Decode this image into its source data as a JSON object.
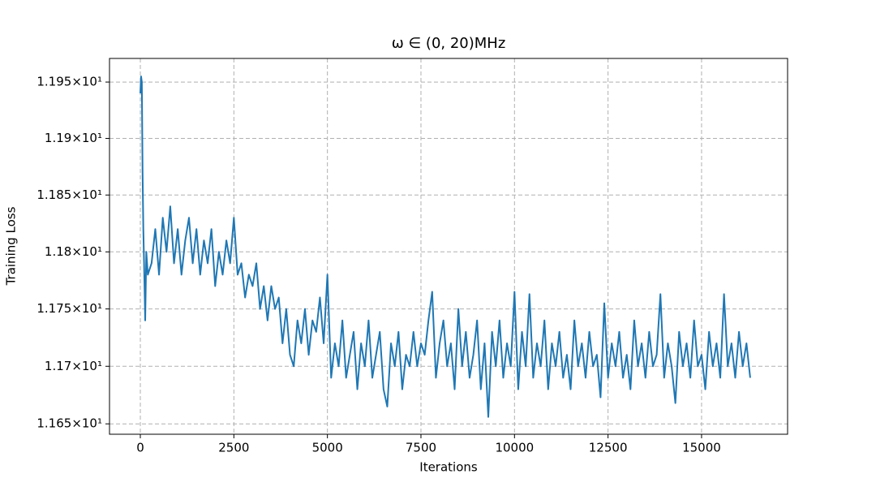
{
  "chart_data": {
    "type": "line",
    "title": "ω ∈ (0, 20)MHz",
    "x_label": "Iterations",
    "y_label": "Training Loss",
    "yscale": "log",
    "grid": true,
    "xlim": [
      -824,
      17299
    ],
    "xticks": [
      0,
      2500,
      5000,
      7500,
      10000,
      12500,
      15000
    ],
    "ylim": [
      11.641,
      11.971
    ],
    "yticks": [
      {
        "value": 11.65,
        "label": "1.165×10¹"
      },
      {
        "value": 11.7,
        "label": "1.17×10¹"
      },
      {
        "value": 11.75,
        "label": "1.175×10¹"
      },
      {
        "value": 11.8,
        "label": "1.18×10¹"
      },
      {
        "value": 11.85,
        "label": "1.185×10¹"
      },
      {
        "value": 11.9,
        "label": "1.19×10¹"
      },
      {
        "value": 11.95,
        "label": "1.195×10¹"
      }
    ],
    "x": [
      0,
      20,
      40,
      60,
      80,
      100,
      130,
      160,
      200,
      300,
      400,
      500,
      600,
      700,
      800,
      900,
      1000,
      1100,
      1200,
      1300,
      1400,
      1500,
      1600,
      1700,
      1800,
      1900,
      2000,
      2100,
      2200,
      2300,
      2400,
      2500,
      2600,
      2700,
      2800,
      2900,
      3000,
      3100,
      3200,
      3300,
      3400,
      3500,
      3600,
      3700,
      3800,
      3900,
      4000,
      4100,
      4200,
      4300,
      4400,
      4500,
      4600,
      4700,
      4800,
      4900,
      5000,
      5100,
      5200,
      5300,
      5400,
      5500,
      5600,
      5700,
      5800,
      5900,
      6000,
      6100,
      6200,
      6300,
      6400,
      6500,
      6600,
      6700,
      6800,
      6900,
      7000,
      7100,
      7200,
      7300,
      7400,
      7500,
      7600,
      7700,
      7800,
      7900,
      8000,
      8100,
      8200,
      8300,
      8400,
      8500,
      8600,
      8700,
      8800,
      8900,
      9000,
      9100,
      9200,
      9300,
      9400,
      9500,
      9600,
      9700,
      9800,
      9900,
      10000,
      10100,
      10200,
      10300,
      10400,
      10500,
      10600,
      10700,
      10800,
      10900,
      11000,
      11100,
      11200,
      11300,
      11400,
      11500,
      11600,
      11700,
      11800,
      11900,
      12000,
      12100,
      12200,
      12300,
      12400,
      12500,
      12600,
      12700,
      12800,
      12900,
      13000,
      13100,
      13200,
      13300,
      13400,
      13500,
      13600,
      13700,
      13800,
      13900,
      14000,
      14100,
      14200,
      14300,
      14400,
      14500,
      14600,
      14700,
      14800,
      14900,
      15000,
      15100,
      15200,
      15300,
      15400,
      15500,
      15600,
      15700,
      15800,
      15900,
      16000,
      16100,
      16200,
      16300
    ],
    "series": [
      {
        "name": "Training Loss",
        "color": "#1f77b4",
        "values": [
          11.94,
          11.955,
          11.95,
          11.87,
          11.82,
          11.79,
          11.74,
          11.8,
          11.78,
          11.79,
          11.82,
          11.78,
          11.83,
          11.8,
          11.84,
          11.79,
          11.82,
          11.78,
          11.81,
          11.83,
          11.79,
          11.82,
          11.78,
          11.81,
          11.79,
          11.82,
          11.77,
          11.8,
          11.78,
          11.81,
          11.79,
          11.83,
          11.78,
          11.79,
          11.76,
          11.78,
          11.77,
          11.79,
          11.75,
          11.77,
          11.74,
          11.77,
          11.75,
          11.76,
          11.72,
          11.75,
          11.71,
          11.7,
          11.74,
          11.72,
          11.75,
          11.71,
          11.74,
          11.73,
          11.76,
          11.72,
          11.78,
          11.69,
          11.72,
          11.7,
          11.74,
          11.69,
          11.71,
          11.73,
          11.68,
          11.72,
          11.7,
          11.74,
          11.69,
          11.71,
          11.73,
          11.68,
          11.665,
          11.72,
          11.7,
          11.73,
          11.68,
          11.71,
          11.7,
          11.73,
          11.7,
          11.72,
          11.71,
          11.74,
          11.765,
          11.69,
          11.72,
          11.74,
          11.7,
          11.72,
          11.68,
          11.75,
          11.7,
          11.73,
          11.69,
          11.71,
          11.74,
          11.68,
          11.72,
          11.656,
          11.73,
          11.7,
          11.74,
          11.69,
          11.72,
          11.7,
          11.765,
          11.68,
          11.73,
          11.7,
          11.763,
          11.69,
          11.72,
          11.7,
          11.74,
          11.68,
          11.72,
          11.7,
          11.73,
          11.69,
          11.71,
          11.68,
          11.74,
          11.7,
          11.72,
          11.69,
          11.73,
          11.7,
          11.71,
          11.673,
          11.755,
          11.69,
          11.72,
          11.7,
          11.73,
          11.69,
          11.71,
          11.68,
          11.74,
          11.7,
          11.72,
          11.69,
          11.73,
          11.7,
          11.71,
          11.763,
          11.69,
          11.72,
          11.7,
          11.668,
          11.73,
          11.7,
          11.72,
          11.69,
          11.74,
          11.7,
          11.71,
          11.68,
          11.73,
          11.7,
          11.72,
          11.69,
          11.763,
          11.7,
          11.72,
          11.69,
          11.73,
          11.7,
          11.72,
          11.69
        ]
      }
    ]
  }
}
